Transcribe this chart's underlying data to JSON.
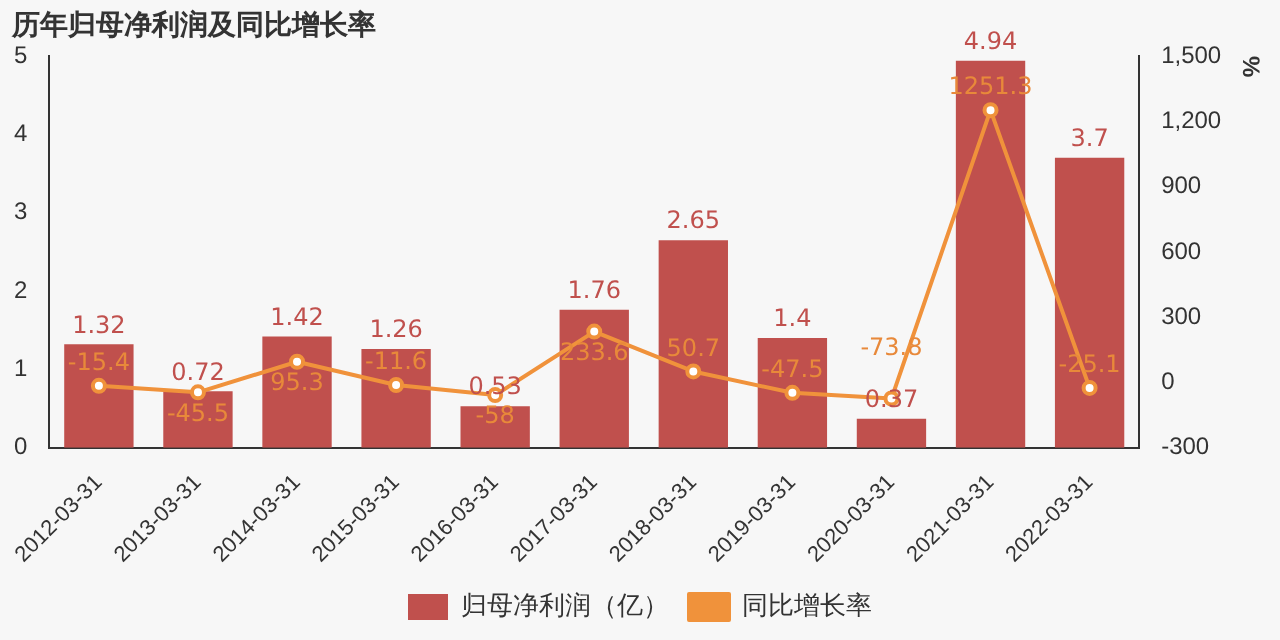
{
  "chart_data": {
    "type": "bar",
    "title": "历年归母净利润及同比增长率",
    "y2label": "%",
    "categories": [
      "2012-03-31",
      "2013-03-31",
      "2014-03-31",
      "2015-03-31",
      "2016-03-31",
      "2017-03-31",
      "2018-03-31",
      "2019-03-31",
      "2020-03-31",
      "2021-03-31",
      "2022-03-31"
    ],
    "series": [
      {
        "name": "归母净利润（亿）",
        "color": "#c0504d",
        "values": [
          1.32,
          0.72,
          1.42,
          1.26,
          0.53,
          1.76,
          2.65,
          1.4,
          0.37,
          4.94,
          3.7
        ]
      },
      {
        "name": "同比增长率",
        "type": "line",
        "axis": "y2",
        "color": "#f0923b",
        "marker": "circle",
        "values": [
          -15.4,
          -45.5,
          95.3,
          -11.6,
          -58,
          233.6,
          50.7,
          -47.5,
          -73.8,
          1251.3,
          -25.1
        ]
      }
    ],
    "ylim": [
      0,
      5
    ],
    "yticks": [
      0,
      1,
      2,
      3,
      4,
      5
    ],
    "y2lim": [
      -300,
      1500
    ],
    "y2ticks": [
      -300,
      0,
      300,
      600,
      900,
      {
        "value": 1200,
        "label": "1,200"
      },
      {
        "value": 1500,
        "label": "1,500"
      }
    ],
    "grid": false,
    "legend": "bottom",
    "data_labels": true
  }
}
